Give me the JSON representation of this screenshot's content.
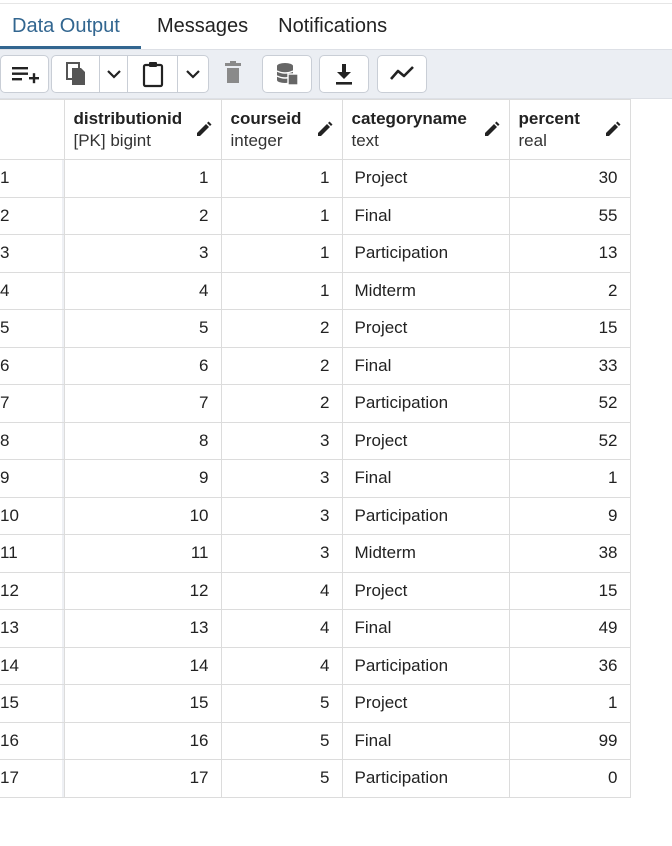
{
  "tabs": [
    {
      "label": "Data Output",
      "active": true
    },
    {
      "label": "Messages",
      "active": false
    },
    {
      "label": "Notifications",
      "active": false
    }
  ],
  "toolbar": {
    "buttons": [
      {
        "icon": "add-row-icon"
      },
      {
        "icon": "copy-icon"
      },
      {
        "icon": "chevron-down-icon"
      },
      {
        "icon": "paste-icon"
      },
      {
        "icon": "chevron-down-icon"
      },
      {
        "icon": "delete-icon"
      },
      {
        "icon": "save-data-icon"
      },
      {
        "icon": "download-icon"
      },
      {
        "icon": "graph-icon"
      }
    ]
  },
  "columns": [
    {
      "name": "distributionid",
      "type": "[PK] bigint"
    },
    {
      "name": "courseid",
      "type": "integer"
    },
    {
      "name": "categoryname",
      "type": "text"
    },
    {
      "name": "percent",
      "type": "real"
    }
  ],
  "rows": [
    {
      "n": "1",
      "distributionid": "1",
      "courseid": "1",
      "categoryname": "Project",
      "percent": "30"
    },
    {
      "n": "2",
      "distributionid": "2",
      "courseid": "1",
      "categoryname": "Final",
      "percent": "55"
    },
    {
      "n": "3",
      "distributionid": "3",
      "courseid": "1",
      "categoryname": "Participation",
      "percent": "13"
    },
    {
      "n": "4",
      "distributionid": "4",
      "courseid": "1",
      "categoryname": "Midterm",
      "percent": "2"
    },
    {
      "n": "5",
      "distributionid": "5",
      "courseid": "2",
      "categoryname": "Project",
      "percent": "15"
    },
    {
      "n": "6",
      "distributionid": "6",
      "courseid": "2",
      "categoryname": "Final",
      "percent": "33"
    },
    {
      "n": "7",
      "distributionid": "7",
      "courseid": "2",
      "categoryname": "Participation",
      "percent": "52"
    },
    {
      "n": "8",
      "distributionid": "8",
      "courseid": "3",
      "categoryname": "Project",
      "percent": "52"
    },
    {
      "n": "9",
      "distributionid": "9",
      "courseid": "3",
      "categoryname": "Final",
      "percent": "1"
    },
    {
      "n": "10",
      "distributionid": "10",
      "courseid": "3",
      "categoryname": "Participation",
      "percent": "9"
    },
    {
      "n": "11",
      "distributionid": "11",
      "courseid": "3",
      "categoryname": "Midterm",
      "percent": "38"
    },
    {
      "n": "12",
      "distributionid": "12",
      "courseid": "4",
      "categoryname": "Project",
      "percent": "15"
    },
    {
      "n": "13",
      "distributionid": "13",
      "courseid": "4",
      "categoryname": "Final",
      "percent": "49"
    },
    {
      "n": "14",
      "distributionid": "14",
      "courseid": "4",
      "categoryname": "Participation",
      "percent": "36"
    },
    {
      "n": "15",
      "distributionid": "15",
      "courseid": "5",
      "categoryname": "Project",
      "percent": "1"
    },
    {
      "n": "16",
      "distributionid": "16",
      "courseid": "5",
      "categoryname": "Final",
      "percent": "99"
    },
    {
      "n": "17",
      "distributionid": "17",
      "courseid": "5",
      "categoryname": "Participation",
      "percent": "0"
    }
  ]
}
